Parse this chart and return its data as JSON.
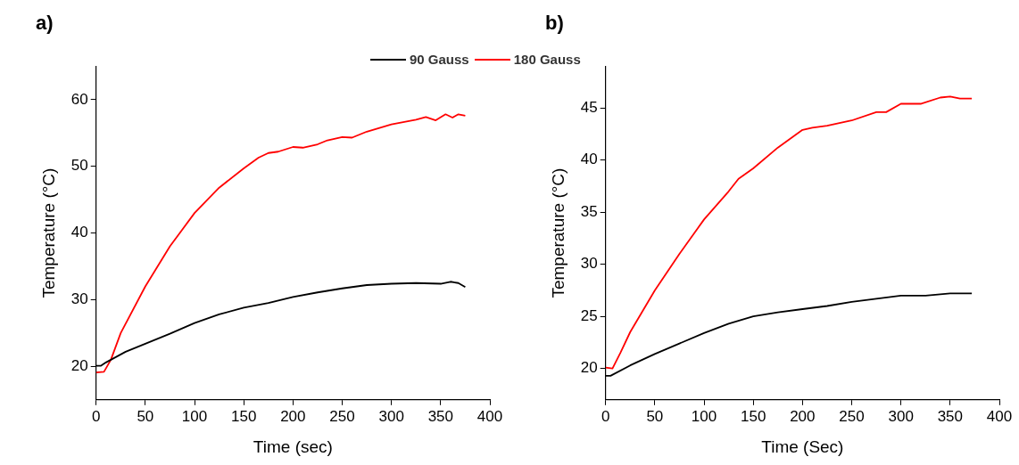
{
  "chart_data": [
    {
      "type": "line",
      "title": "a)",
      "xlabel": "Time (sec)",
      "ylabel": "Temperature (°C)",
      "xlim": [
        0,
        400
      ],
      "xticks": [
        0,
        50,
        100,
        150,
        200,
        250,
        300,
        350,
        400
      ],
      "ylim": [
        15,
        65
      ],
      "yticks": [
        20,
        30,
        40,
        50,
        60
      ],
      "grid": false,
      "legend": "top",
      "marker": "none",
      "series": [
        {
          "name": "90 Gauss",
          "color": "#000000",
          "x": [
            0,
            5,
            10,
            20,
            30,
            50,
            75,
            100,
            125,
            150,
            175,
            200,
            225,
            250,
            275,
            300,
            325,
            350,
            360,
            368,
            375
          ],
          "values": [
            20.1,
            20.1,
            20.6,
            21.4,
            22.2,
            23.4,
            24.9,
            26.5,
            27.8,
            28.8,
            29.5,
            30.4,
            31.1,
            31.7,
            32.2,
            32.4,
            32.5,
            32.4,
            32.7,
            32.5,
            31.9
          ]
        },
        {
          "name": "180 Gauss",
          "color": "#ff0000",
          "x": [
            0,
            8,
            15,
            25,
            50,
            75,
            100,
            125,
            150,
            165,
            175,
            185,
            200,
            210,
            225,
            235,
            250,
            260,
            275,
            300,
            325,
            335,
            345,
            355,
            362,
            368,
            375
          ],
          "values": [
            19.1,
            19.2,
            21,
            25,
            32,
            38,
            43,
            46.8,
            49.7,
            51.3,
            52,
            52.2,
            52.9,
            52.8,
            53.3,
            53.9,
            54.4,
            54.3,
            55.2,
            56.3,
            57,
            57.4,
            56.9,
            57.8,
            57.3,
            57.8,
            57.6
          ]
        }
      ]
    },
    {
      "type": "line",
      "title": "b)",
      "xlabel": "Time (Sec)",
      "ylabel": "Temperature (°C)",
      "xlim": [
        0,
        400
      ],
      "xticks": [
        0,
        50,
        100,
        150,
        200,
        250,
        300,
        350,
        400
      ],
      "ylim": [
        17,
        49
      ],
      "yticks": [
        20,
        25,
        30,
        35,
        40,
        45
      ],
      "grid": false,
      "marker": "none",
      "series": [
        {
          "color": "#000000",
          "x": [
            0,
            5,
            25,
            50,
            75,
            100,
            125,
            150,
            175,
            200,
            225,
            250,
            275,
            300,
            325,
            350,
            372
          ],
          "values": [
            19.3,
            19.3,
            20.3,
            21.4,
            22.4,
            23.4,
            24.3,
            25,
            25.4,
            25.7,
            26,
            26.4,
            26.7,
            27,
            27,
            27.2,
            27.2
          ]
        },
        {
          "color": "#ff0000",
          "x": [
            0,
            7,
            15,
            25,
            50,
            75,
            100,
            125,
            135,
            150,
            175,
            200,
            210,
            225,
            250,
            275,
            285,
            300,
            320,
            340,
            350,
            360,
            372
          ],
          "values": [
            20.1,
            20,
            21.5,
            23.5,
            27.5,
            31,
            34.3,
            37,
            38.2,
            39.2,
            41.2,
            42.9,
            43.1,
            43.3,
            43.8,
            44.6,
            44.6,
            45.4,
            45.4,
            46,
            46.1,
            45.9,
            45.9
          ]
        }
      ]
    }
  ]
}
